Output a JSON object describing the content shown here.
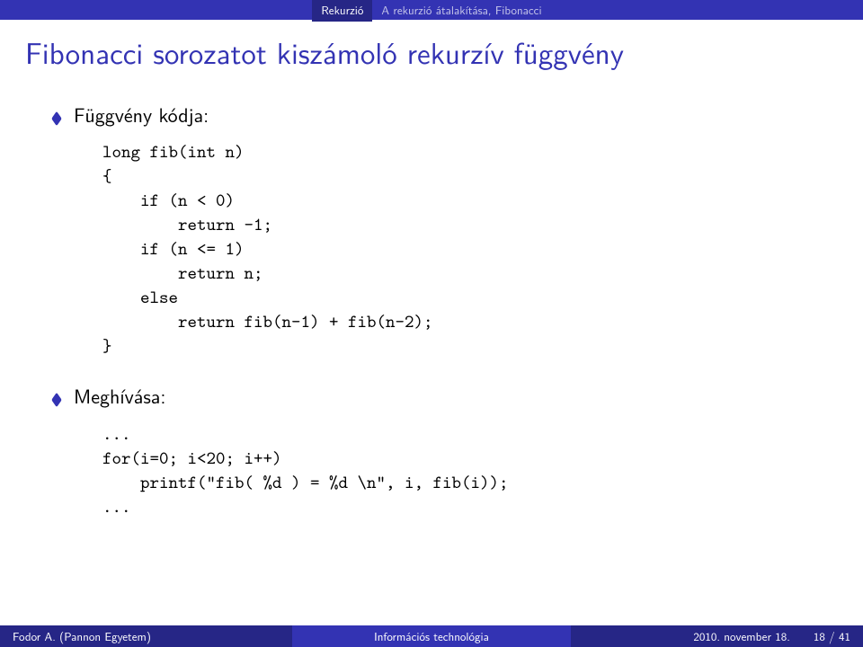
{
  "topbar": {
    "section": "Rekurzió",
    "subsection": "A rekurzió átalakítása, Fibonacci"
  },
  "frametitle": "Fibonacci sorozatot kiszámoló rekurzív függvény",
  "items": {
    "first_label": "Függvény kódja:",
    "second_label": "Meghívása:"
  },
  "code1": "long fib(int n)\n{\n    if (n < 0)\n        return -1;\n    if (n <= 1)\n        return n;\n    else\n        return fib(n-1) + fib(n-2);\n}",
  "code2": "...\nfor(i=0; i<20; i++)\n    printf(\"fib( %d ) = %d \\n\", i, fib(i));\n...",
  "footer": {
    "author": "Fodor A. (Pannon Egyetem)",
    "title": "Információs technológia",
    "date": "2010. november 18.",
    "page_current": 18,
    "page_total": 41
  },
  "colors": {
    "frame_title": "#3333b3",
    "topbar_bg": "#3333b3",
    "topbar_dark": "#262686",
    "footer_bg": "#3333b3",
    "footer_dark": "#262686",
    "bullet": "#3333b3",
    "text": "#000000",
    "background": "#ffffff"
  },
  "typography": {
    "title_fontsize": 33,
    "body_fontsize": 22,
    "code_fontsize": 20,
    "navbar_fontsize": 13,
    "footer_fontsize": 13
  }
}
